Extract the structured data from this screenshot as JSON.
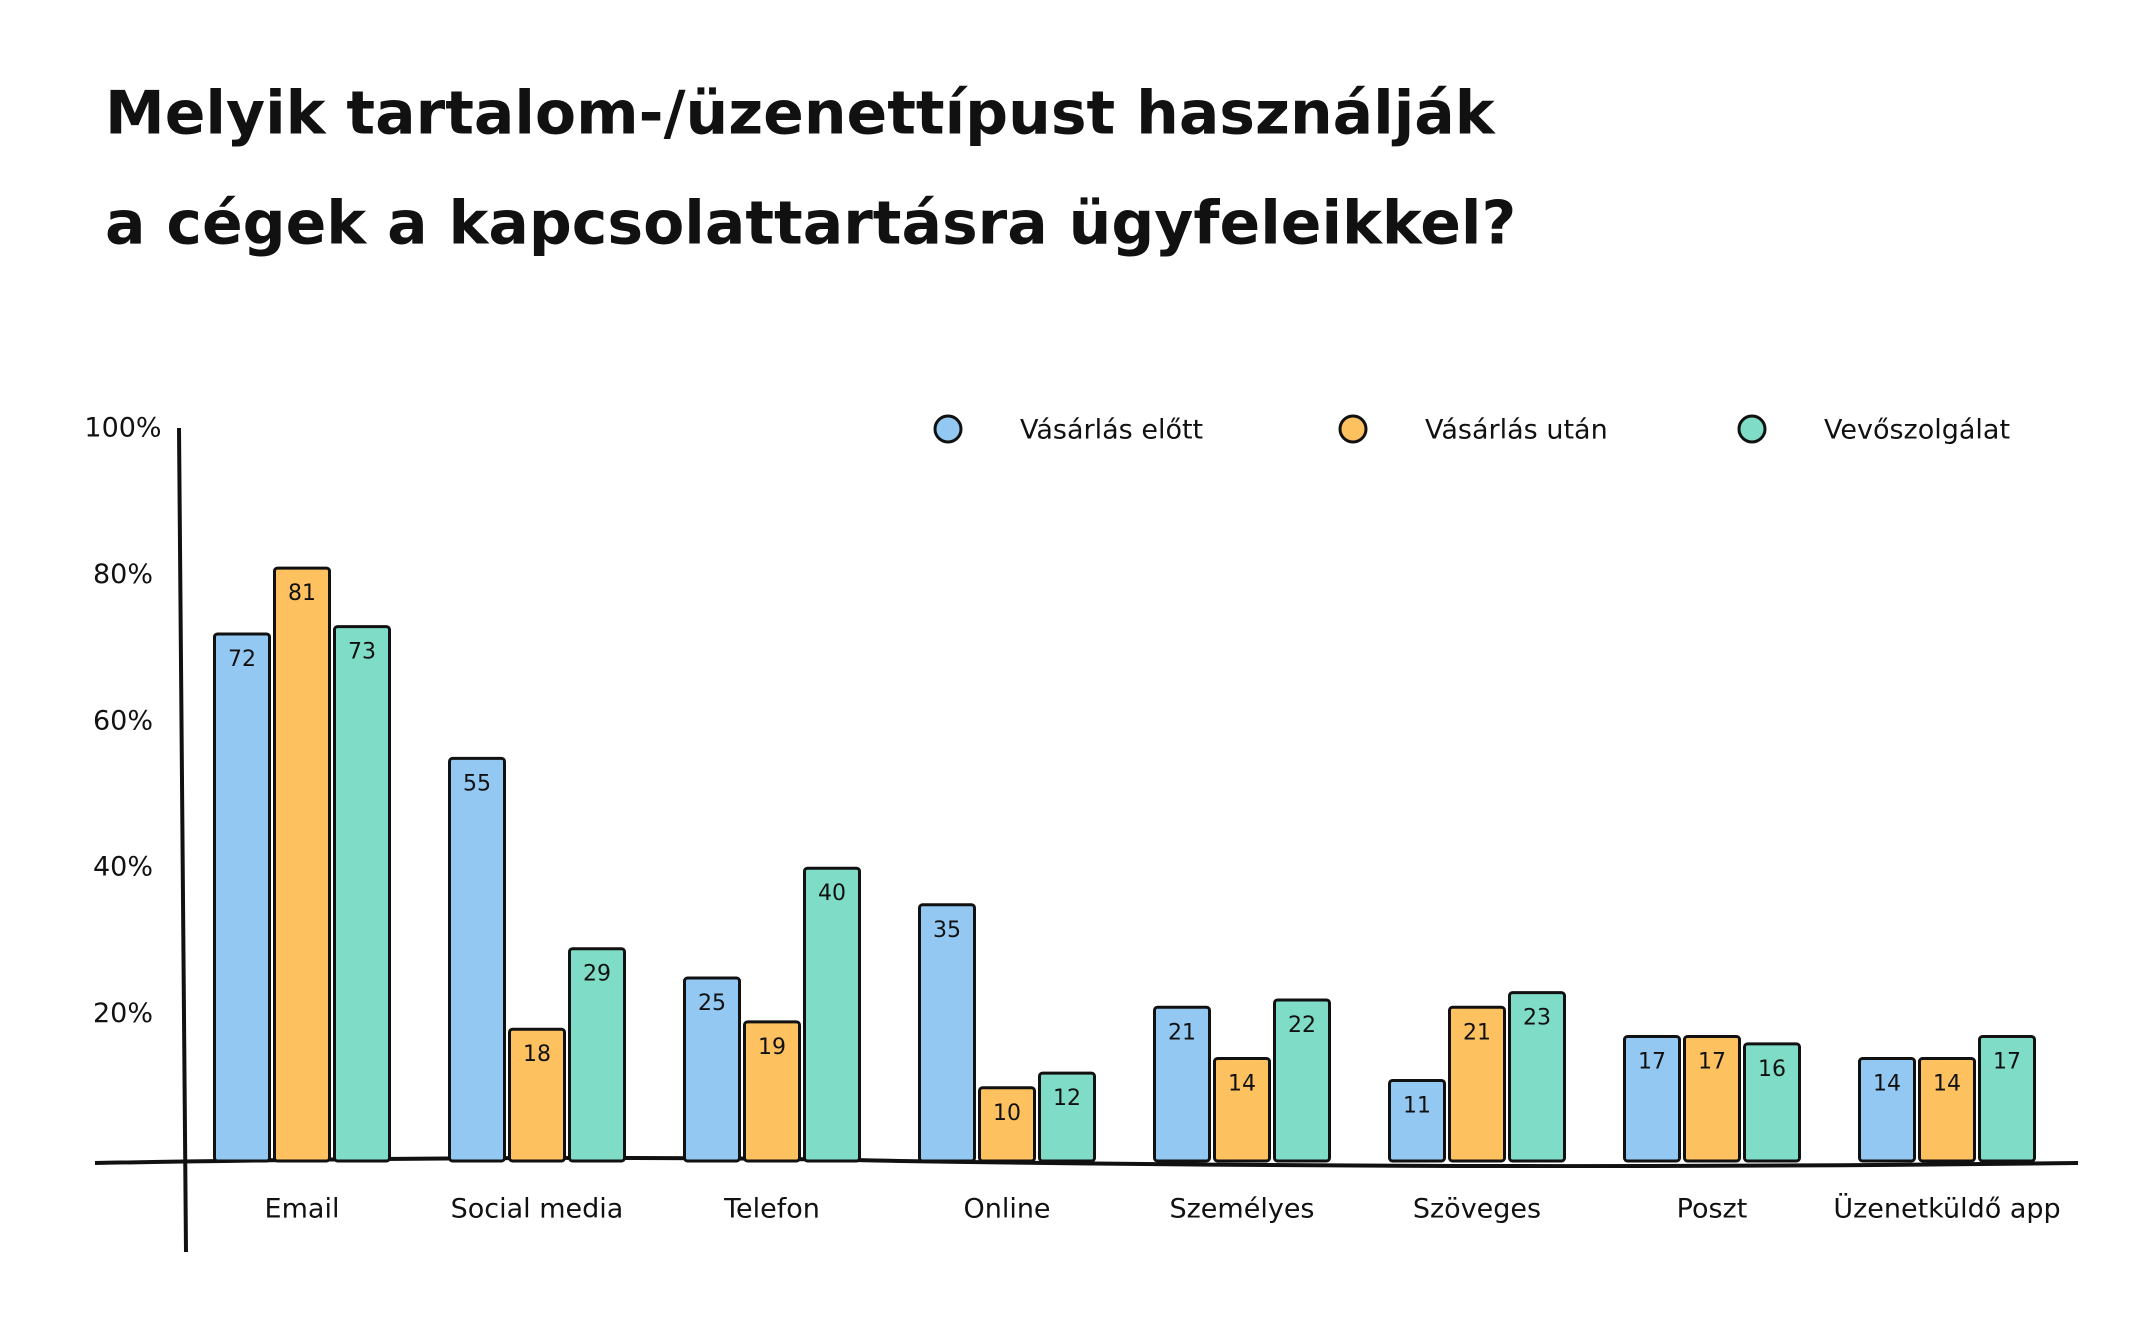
{
  "chart_data": {
    "type": "bar",
    "title": [
      "Melyik tartalom-/üzenettípust használják",
      "a cégek a kapcsolattartásra ügyfeleikkel?"
    ],
    "categories": [
      "Email",
      "Social media",
      "Telefon",
      "Online",
      "Személyes",
      "Szöveges",
      "Poszt",
      "Üzenetküldő app"
    ],
    "series": [
      {
        "name": "Vásárlás előtt",
        "color": "#92c8f2",
        "values": [
          72,
          55,
          25,
          35,
          21,
          11,
          17,
          14
        ]
      },
      {
        "name": "Vásárlás után",
        "color": "#fdc15f",
        "values": [
          81,
          18,
          19,
          10,
          14,
          21,
          17,
          14
        ]
      },
      {
        "name": "Vevőszolgálat",
        "color": "#7fdcc6",
        "values": [
          73,
          29,
          40,
          12,
          22,
          23,
          16,
          17
        ]
      }
    ],
    "ylim": [
      0,
      100
    ],
    "yticks": [
      {
        "value": 20,
        "label": "20%"
      },
      {
        "value": 40,
        "label": "40%"
      },
      {
        "value": 60,
        "label": "60%"
      },
      {
        "value": 80,
        "label": "80%"
      },
      {
        "value": 100,
        "label": "100%"
      }
    ],
    "legend": "top-right"
  }
}
